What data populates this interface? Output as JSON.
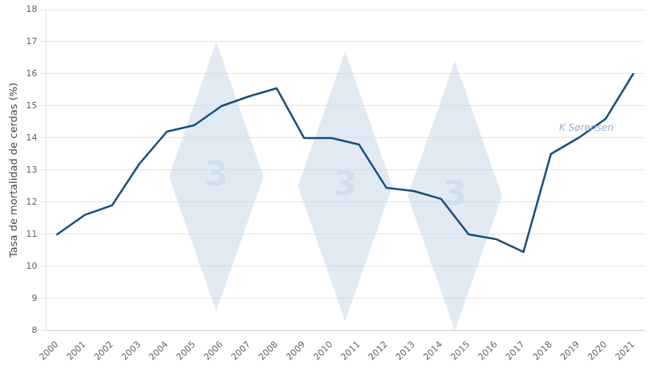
{
  "chart_data": {
    "type": "line",
    "y_label": "Tasa de mortalidad de cerdas (%)",
    "x": [
      2000,
      2001,
      2002,
      2003,
      2004,
      2005,
      2006,
      2007,
      2008,
      2009,
      2010,
      2011,
      2012,
      2013,
      2014,
      2015,
      2016,
      2017,
      2018,
      2019,
      2020,
      2021
    ],
    "values": [
      11.0,
      11.6,
      11.9,
      13.2,
      14.2,
      14.4,
      15.0,
      15.3,
      15.55,
      14.0,
      14.0,
      13.8,
      12.45,
      12.35,
      12.1,
      11.0,
      10.85,
      10.45,
      13.5,
      14.0,
      14.6,
      16.0
    ],
    "color": "#1a4f7a",
    "xlim": [
      1999.6,
      2021.4
    ],
    "xticks": [
      2000,
      2001,
      2002,
      2003,
      2004,
      2005,
      2006,
      2007,
      2008,
      2009,
      2010,
      2011,
      2012,
      2013,
      2014,
      2015,
      2016,
      2017,
      2018,
      2019,
      2020,
      2021
    ],
    "ylim": [
      8,
      18
    ],
    "yticks": [
      8,
      9,
      10,
      11,
      12,
      13,
      14,
      15,
      16,
      17,
      18
    ],
    "grid": "y",
    "legend": false,
    "annotations": [
      {
        "text": "3",
        "x": 2005.8,
        "y": 12.8,
        "marker": "diamond",
        "color": "#c8d8ea"
      },
      {
        "text": "3",
        "x": 2010.5,
        "y": 12.5,
        "marker": "diamond",
        "color": "#c8d8ea"
      },
      {
        "text": "3",
        "x": 2014.5,
        "y": 12.2,
        "marker": "diamond",
        "color": "#c8d8ea"
      },
      {
        "text": "K Sørensen",
        "x": 2018.3,
        "y": 14.3,
        "color": "#9ab0c8"
      }
    ]
  }
}
